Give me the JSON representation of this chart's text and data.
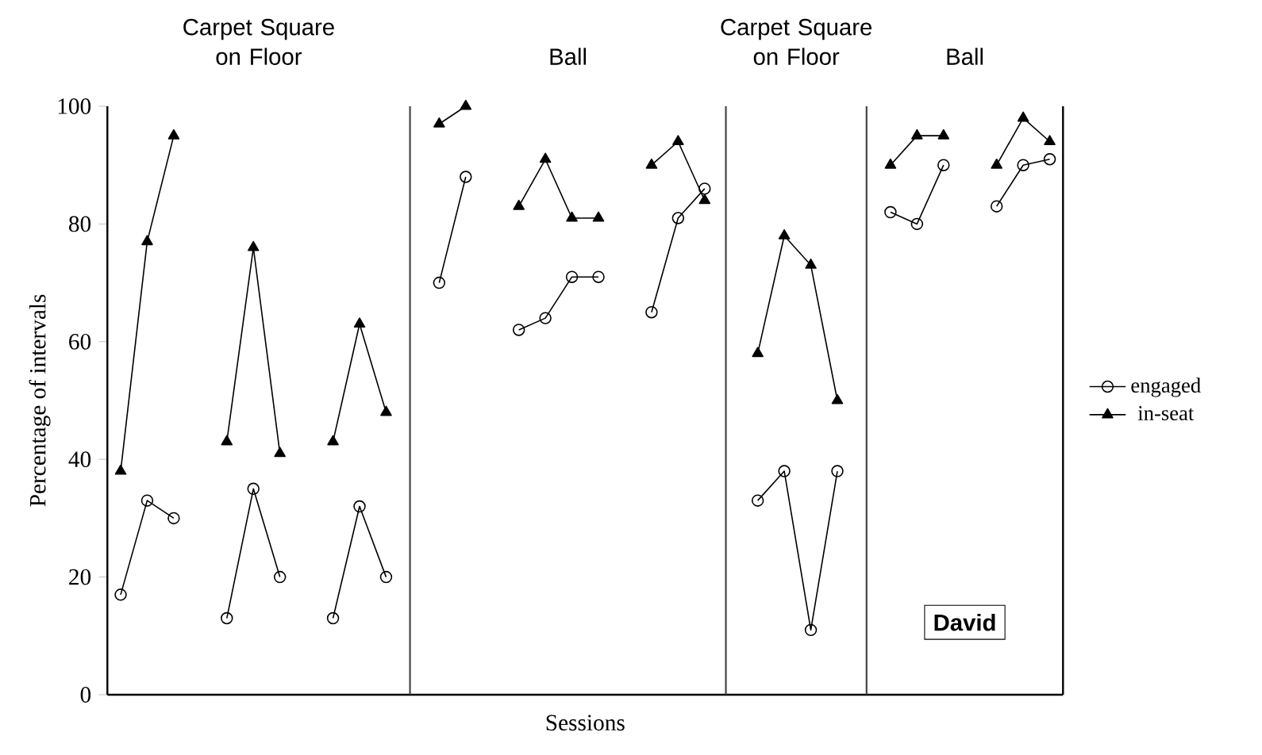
{
  "chart_data": {
    "type": "line",
    "xlabel": "Sessions",
    "ylabel": "Percentage of intervals",
    "categories": [
      null,
      null,
      null,
      null,
      null,
      null,
      null,
      null,
      null,
      null,
      null,
      null,
      null,
      null,
      null,
      null,
      null,
      null,
      null,
      null,
      null,
      null,
      null,
      null,
      null,
      null,
      null,
      null,
      null,
      null,
      null,
      null,
      null,
      null,
      null,
      null
    ],
    "series": [
      {
        "name": "engaged",
        "color": "#000000",
        "marker": "circle",
        "values": [
          17,
          33,
          30,
          null,
          13,
          35,
          20,
          null,
          13,
          32,
          20,
          null,
          70,
          88,
          null,
          62,
          64,
          71,
          71,
          null,
          65,
          81,
          86,
          null,
          33,
          38,
          11,
          38,
          null,
          82,
          80,
          90,
          null,
          83,
          90,
          91
        ]
      },
      {
        "name": "in-seat",
        "color": "#000000",
        "marker": "triangle",
        "values": [
          38,
          77,
          95,
          null,
          43,
          76,
          41,
          null,
          43,
          63,
          48,
          null,
          97,
          100,
          null,
          83,
          91,
          81,
          81,
          null,
          90,
          94,
          84,
          null,
          58,
          78,
          73,
          50,
          null,
          90,
          95,
          95,
          null,
          90,
          98,
          94
        ]
      }
    ],
    "ylim": [
      0,
      100
    ],
    "yticks": [
      0,
      20,
      40,
      60,
      80,
      100
    ],
    "grid": false,
    "tick_labels": "y",
    "legend": "right",
    "line_style": "solid",
    "annotations": [
      "Carpet Square on Floor",
      "Ball",
      "Carpet Square on Floor",
      "Ball",
      "David"
    ]
  }
}
